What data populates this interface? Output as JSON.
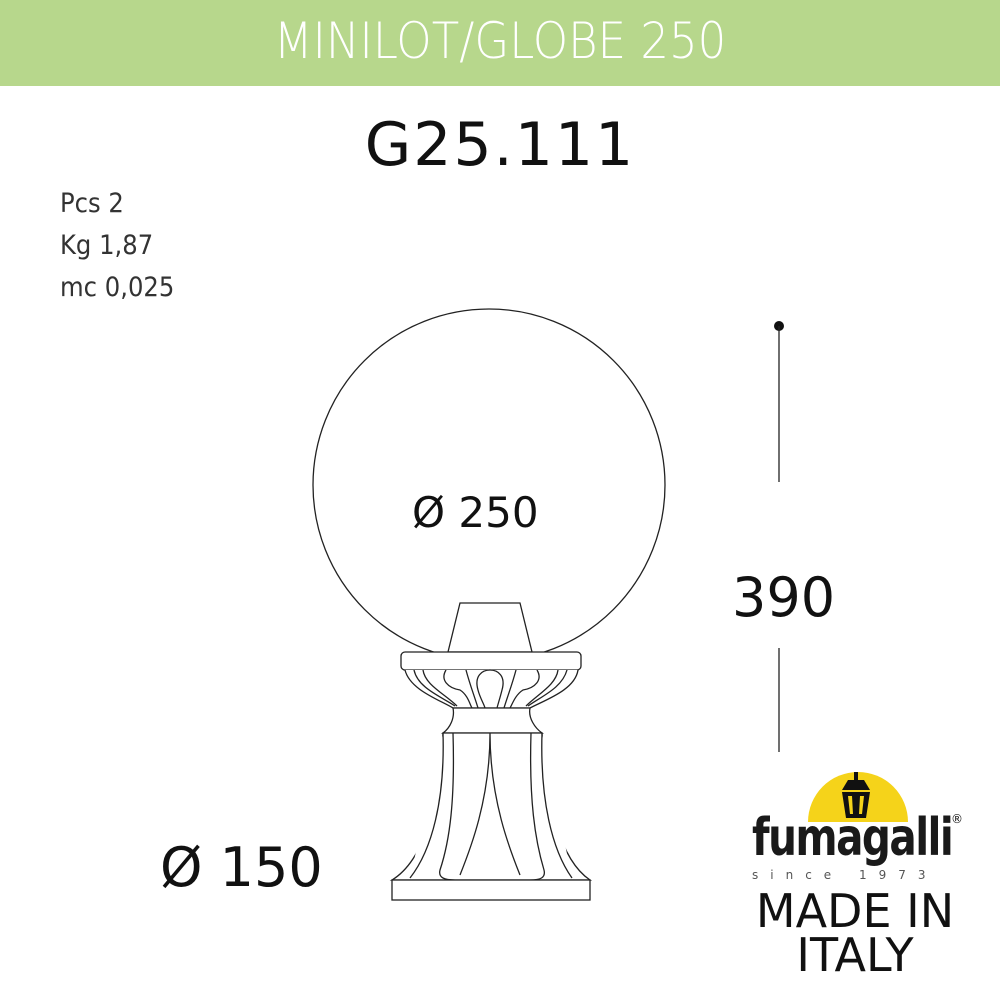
{
  "header": {
    "title": "MINILOT/GLOBE 250",
    "band_color": "#b7d78c"
  },
  "product_code": "G25.111",
  "specs": [
    {
      "label": "Pcs",
      "value": "2",
      "text": "Pcs 2"
    },
    {
      "label": "Kg",
      "value": "1,87",
      "text": "Kg  1,87"
    },
    {
      "label": "mc",
      "value": "0,025",
      "text": "mc  0,025"
    }
  ],
  "dimensions": {
    "globe_diameter": "Ø 250",
    "base_diameter": "Ø 150",
    "height": "390"
  },
  "logo": {
    "brand": "fumagalli",
    "tagline": "since 1973",
    "registered": "®",
    "sun_color": "#f5d31a"
  },
  "origin": {
    "line1": "MADE IN",
    "line2": "ITALY"
  }
}
